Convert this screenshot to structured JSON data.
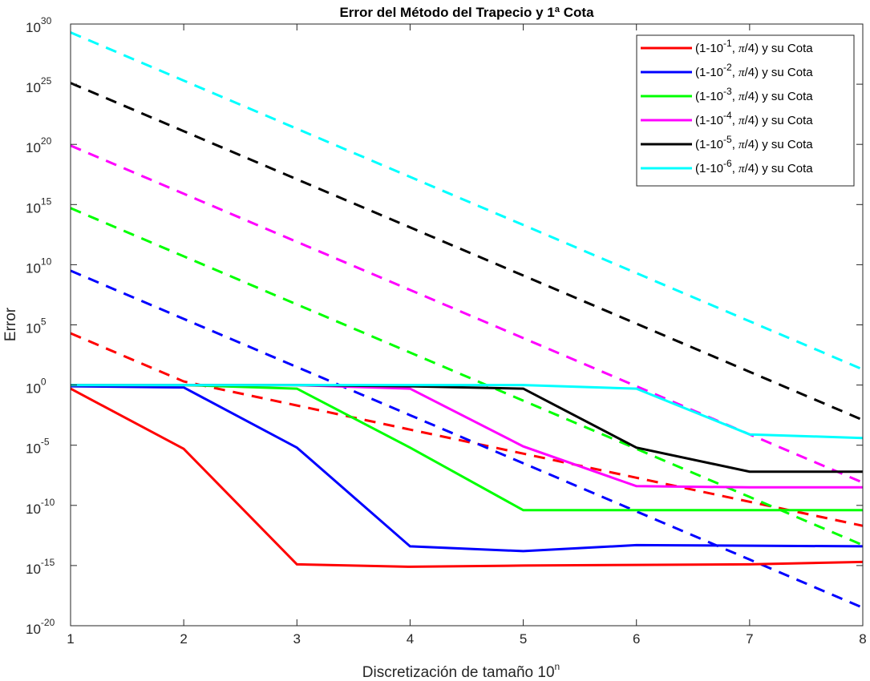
{
  "chart_data": {
    "type": "line",
    "title": "Error del Método del Trapecio y 1ª Cota",
    "xlabel": "Discretización de tamaño 10",
    "xlabel_sup": "n",
    "ylabel": "Error",
    "yscale": "log",
    "xlim": [
      1,
      8
    ],
    "ylim_exp": [
      -20,
      30
    ],
    "x": [
      1,
      2,
      3,
      4,
      5,
      6,
      7,
      8
    ],
    "x_ticks": [
      "1",
      "2",
      "3",
      "4",
      "5",
      "6",
      "7",
      "8"
    ],
    "y_ticks": [
      {
        "base": "10",
        "exp": "-20"
      },
      {
        "base": "10",
        "exp": "-15"
      },
      {
        "base": "10",
        "exp": "-10"
      },
      {
        "base": "10",
        "exp": "-5"
      },
      {
        "base": "10",
        "exp": "0"
      },
      {
        "base": "10",
        "exp": "5"
      },
      {
        "base": "10",
        "exp": "10"
      },
      {
        "base": "10",
        "exp": "15"
      },
      {
        "base": "10",
        "exp": "20"
      },
      {
        "base": "10",
        "exp": "25"
      },
      {
        "base": "10",
        "exp": "30"
      }
    ],
    "grid": false,
    "legend_position": "top-right",
    "series": [
      {
        "name": "(1-10-1, π/4) y su Cota",
        "legend_parts": {
          "pre": "(1-10",
          "sup": "-1",
          "mid": ", ",
          "pi": "π",
          "post": "/4) y su Cota"
        },
        "color": "#ff0000",
        "error_log10": [
          -0.3,
          -5.3,
          -14.9,
          -15.1,
          -15.0,
          -14.95,
          -14.9,
          -14.7
        ],
        "bound_log10": [
          4.3,
          0.3,
          -1.7,
          -3.7,
          -5.7,
          -7.7,
          -9.7,
          -11.7
        ]
      },
      {
        "name": "(1-10-2, π/4) y su Cota",
        "legend_parts": {
          "pre": "(1-10",
          "sup": "-2",
          "mid": ", ",
          "pi": "π",
          "post": "/4) y su Cota"
        },
        "color": "#0000ff",
        "error_log10": [
          -0.1,
          -0.2,
          -5.2,
          -13.4,
          -13.8,
          -13.3,
          -13.35,
          -13.4
        ],
        "bound_log10": [
          9.5,
          5.5,
          1.5,
          -2.5,
          -6.5,
          -10.5,
          -14.5,
          -18.5
        ]
      },
      {
        "name": "(1-10-3, π/4) y su Cota",
        "legend_parts": {
          "pre": "(1-10",
          "sup": "-3",
          "mid": ", ",
          "pi": "π",
          "post": "/4) y su Cota"
        },
        "color": "#00ff00",
        "error_log10": [
          0.0,
          0.0,
          -0.3,
          -5.2,
          -10.4,
          -10.4,
          -10.4,
          -10.4
        ],
        "bound_log10": [
          14.7,
          10.7,
          6.7,
          2.7,
          -1.3,
          -5.3,
          -9.3,
          -13.3
        ]
      },
      {
        "name": "(1-10-4, π/4) y su Cota",
        "legend_parts": {
          "pre": "(1-10",
          "sup": "-4",
          "mid": ", ",
          "pi": "π",
          "post": "/4) y su Cota"
        },
        "color": "#ff00ff",
        "error_log10": [
          0.0,
          0.0,
          0.0,
          -0.3,
          -5.1,
          -8.4,
          -8.5,
          -8.5
        ],
        "bound_log10": [
          19.9,
          15.9,
          11.9,
          7.9,
          3.9,
          -0.1,
          -4.1,
          -8.1
        ]
      },
      {
        "name": "(1-10-5, π/4) y su Cota",
        "legend_parts": {
          "pre": "(1-10",
          "sup": "-5",
          "mid": ", ",
          "pi": "π",
          "post": "/4) y su Cota"
        },
        "color": "#000000",
        "error_log10": [
          0.0,
          0.0,
          0.0,
          -0.1,
          -0.3,
          -5.2,
          -7.2,
          -7.2
        ],
        "bound_log10": [
          25.1,
          21.1,
          17.1,
          13.1,
          9.1,
          5.1,
          1.1,
          -2.9
        ]
      },
      {
        "name": "(1-10-6, π/4) y su Cota",
        "legend_parts": {
          "pre": "(1-10",
          "sup": "-6",
          "mid": ", ",
          "pi": "π",
          "post": "/4) y su Cota"
        },
        "color": "#00ffff",
        "error_log10": [
          0.0,
          0.0,
          0.0,
          0.0,
          0.0,
          -0.3,
          -4.1,
          -4.4
        ],
        "bound_log10": [
          29.3,
          25.3,
          21.3,
          17.3,
          13.3,
          9.3,
          5.3,
          1.3
        ]
      }
    ]
  }
}
